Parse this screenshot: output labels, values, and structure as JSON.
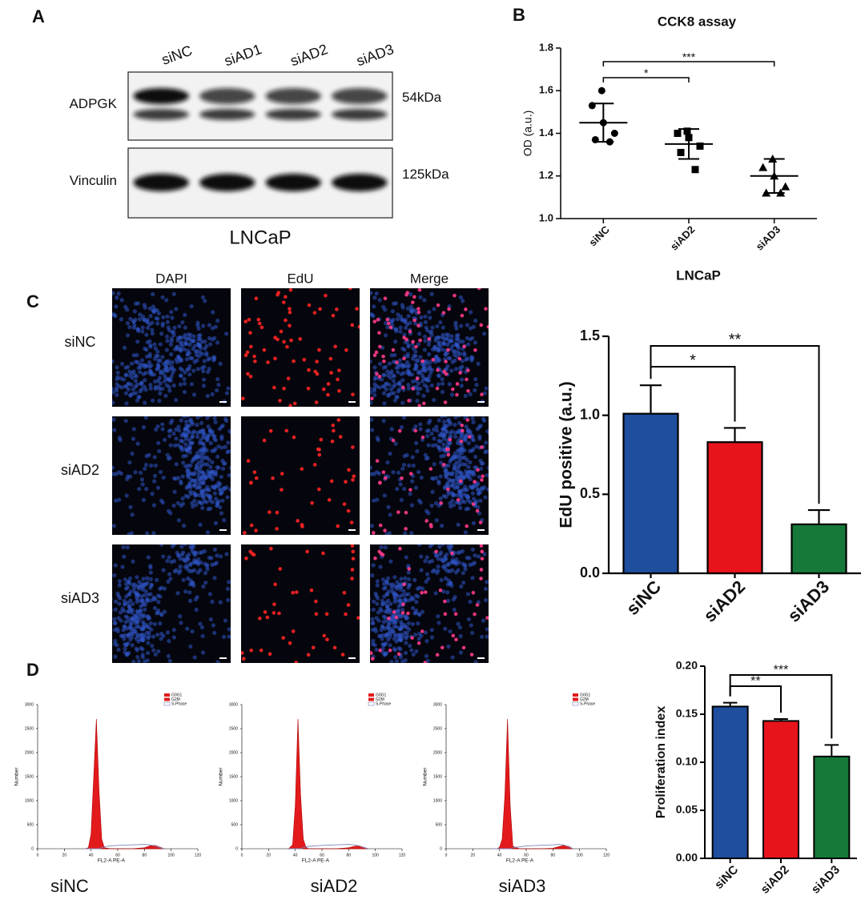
{
  "panel_labels": [
    "A",
    "B",
    "C",
    "D"
  ],
  "western_blot": {
    "lanes": [
      "siNC",
      "siAD1",
      "siAD2",
      "siAD3"
    ],
    "blots": [
      {
        "protein": "ADPGK",
        "size": "54kDa"
      },
      {
        "protein": "Vinculin",
        "size": "125kDa"
      }
    ],
    "cell_line": "LNCaP"
  },
  "microscopy": {
    "columns": [
      "DAPI",
      "EdU",
      "Merge"
    ],
    "rows": [
      "siNC",
      "siAD2",
      "siAD3"
    ]
  },
  "chart_data": [
    {
      "type": "dot",
      "title": "CCK8 assay",
      "y_label": "OD (a.u.)",
      "x_label": "LNCaP",
      "categories": [
        "siNC",
        "siAD2",
        "siAD3"
      ],
      "points": [
        [
          1.6,
          1.53,
          1.45,
          1.4,
          1.37,
          1.36
        ],
        [
          1.41,
          1.4,
          1.38,
          1.34,
          1.31,
          1.23
        ],
        [
          1.28,
          1.24,
          1.2,
          1.15,
          1.12,
          1.12
        ]
      ],
      "means": [
        1.45,
        1.35,
        1.2
      ],
      "sds": [
        0.09,
        0.07,
        0.08
      ],
      "markers": [
        "circle",
        "square",
        "triangle"
      ],
      "ylim": [
        1,
        1.8
      ],
      "yticks": [
        {
          "value": 1,
          "label": "1.0"
        },
        1.2,
        1.4,
        1.6,
        1.8
      ],
      "comparisons": [
        {
          "groups": [
            "siNC",
            "siAD2"
          ],
          "label": "*"
        },
        {
          "groups": [
            "siNC",
            "siAD3"
          ],
          "label": "***"
        }
      ]
    },
    {
      "type": "bar",
      "y_label": "EdU positive (a.u.)",
      "categories": [
        "siNC",
        "siAD2",
        "siAD3"
      ],
      "values": [
        1.01,
        0.83,
        0.31
      ],
      "errors": [
        0.18,
        0.09,
        0.09
      ],
      "colors": [
        "#1f4e9e",
        "#e8141c",
        "#16793a"
      ],
      "ylim": [
        0,
        1.5
      ],
      "yticks": [
        {
          "value": 0,
          "label": "0.0"
        },
        0.5,
        {
          "value": 1,
          "label": "1.0"
        },
        1.5
      ],
      "comparisons": [
        {
          "groups": [
            "siNC",
            "siAD2"
          ],
          "label": "*"
        },
        {
          "groups": [
            "siNC",
            "siAD3"
          ],
          "label": "**"
        }
      ]
    },
    {
      "type": "bar",
      "y_label": "Proliferation index",
      "categories": [
        "siNC",
        "siAD2",
        "siAD3"
      ],
      "values": [
        0.158,
        0.143,
        0.106
      ],
      "errors": [
        0.004,
        0.002,
        0.012
      ],
      "colors": [
        "#1f4e9e",
        "#e8141c",
        "#16793a"
      ],
      "ylim": [
        0,
        0.2
      ],
      "yticks": [
        {
          "value": 0,
          "label": "0.00"
        },
        0.05,
        {
          "value": 0.1,
          "label": "0.10"
        },
        0.15,
        {
          "value": 0.2,
          "label": "0.20"
        }
      ],
      "comparisons": [
        {
          "groups": [
            "siNC",
            "siAD2"
          ],
          "label": "**"
        },
        {
          "groups": [
            "siNC",
            "siAD3"
          ],
          "label": "***"
        }
      ]
    },
    {
      "type": "flow_histogram",
      "sample": "siNC",
      "x_label": "FL2-A PE-A",
      "y_label": "Number",
      "x": [
        35,
        38,
        40,
        42,
        44,
        46,
        48,
        50,
        55,
        60,
        70,
        80,
        84,
        88,
        92,
        95
      ],
      "series": [
        {
          "name": "G0G1",
          "color": "#e31a1c",
          "style": "area",
          "values": [
            0,
            20,
            300,
            1500,
            2700,
            1200,
            200,
            20,
            0,
            0,
            0,
            0,
            0,
            0,
            0,
            0
          ]
        },
        {
          "name": "G2M",
          "color": "#e31a1c",
          "style": "area",
          "values": [
            0,
            0,
            0,
            0,
            0,
            0,
            0,
            0,
            0,
            0,
            0,
            20,
            60,
            70,
            30,
            0
          ]
        },
        {
          "name": "S-Phase",
          "color": "#7a86b8",
          "style": "line",
          "values": [
            0,
            0,
            0,
            0,
            0,
            0,
            20,
            40,
            60,
            70,
            80,
            90,
            80,
            60,
            20,
            0
          ]
        }
      ],
      "xlim": [
        0,
        120
      ],
      "xticks": [
        0,
        20,
        40,
        60,
        80,
        100,
        120
      ],
      "ylim": [
        0,
        3000
      ],
      "yticks": [
        0,
        500,
        1000,
        1500,
        2000,
        2500,
        3000
      ]
    },
    {
      "type": "flow_histogram",
      "sample": "siAD2",
      "x_label": "FL2-A PE-A",
      "y_label": "Number",
      "x": [
        35,
        38,
        40,
        42,
        44,
        46,
        48,
        50,
        55,
        60,
        70,
        80,
        84,
        88,
        92,
        95
      ],
      "series": [
        {
          "name": "G0G1",
          "color": "#e31a1c",
          "style": "area",
          "values": [
            0,
            80,
            900,
            2700,
            1100,
            200,
            30,
            0,
            0,
            0,
            0,
            0,
            0,
            0,
            0,
            0
          ]
        },
        {
          "name": "G2M",
          "color": "#e31a1c",
          "style": "area",
          "values": [
            0,
            0,
            0,
            0,
            0,
            0,
            0,
            0,
            0,
            0,
            0,
            20,
            50,
            60,
            25,
            0
          ]
        },
        {
          "name": "S-Phase",
          "color": "#7a86b8",
          "style": "line",
          "values": [
            0,
            0,
            0,
            0,
            0,
            20,
            40,
            50,
            60,
            70,
            80,
            90,
            80,
            60,
            20,
            0
          ]
        }
      ],
      "xlim": [
        0,
        120
      ],
      "xticks": [
        0,
        20,
        40,
        60,
        80,
        100,
        120
      ],
      "ylim": [
        0,
        3000
      ],
      "yticks": [
        0,
        500,
        1000,
        1500,
        2000,
        2500,
        3000
      ]
    },
    {
      "type": "flow_histogram",
      "sample": "siAD3",
      "x_label": "FL2-A PE-A",
      "y_label": "Number",
      "x": [
        35,
        38,
        40,
        42,
        44,
        46,
        48,
        50,
        55,
        60,
        70,
        80,
        84,
        88,
        92,
        95
      ],
      "series": [
        {
          "name": "G0G1",
          "color": "#e31a1c",
          "style": "area",
          "values": [
            0,
            0,
            30,
            200,
            1100,
            2700,
            900,
            50,
            0,
            0,
            0,
            0,
            0,
            0,
            0,
            0
          ]
        },
        {
          "name": "G2M",
          "color": "#e31a1c",
          "style": "area",
          "values": [
            0,
            0,
            0,
            0,
            0,
            0,
            0,
            0,
            0,
            0,
            0,
            10,
            40,
            70,
            50,
            0
          ]
        },
        {
          "name": "S-Phase",
          "color": "#7a86b8",
          "style": "line",
          "values": [
            0,
            0,
            0,
            0,
            0,
            0,
            0,
            20,
            40,
            60,
            70,
            80,
            90,
            80,
            40,
            0
          ]
        }
      ],
      "xlim": [
        0,
        120
      ],
      "xticks": [
        0,
        20,
        40,
        60,
        80,
        100,
        120
      ],
      "ylim": [
        0,
        3000
      ],
      "yticks": [
        0,
        500,
        1000,
        1500,
        2000,
        2500,
        3000
      ]
    }
  ]
}
